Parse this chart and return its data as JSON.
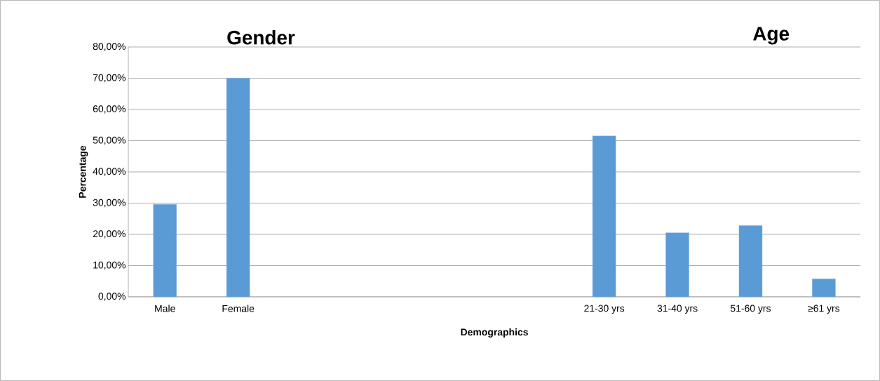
{
  "chart_data": {
    "type": "bar",
    "xlabel": "Demographics",
    "ylabel": "Percentage",
    "annotations": [
      "Gender",
      "Age"
    ],
    "categories": [
      "Male",
      "Female",
      null,
      null,
      null,
      null,
      "21-30 yrs",
      "31-40 yrs",
      "51-60 yrs",
      "≥61 yrs"
    ],
    "values": [
      29.6,
      70,
      null,
      null,
      null,
      null,
      51.5,
      20.5,
      22.8,
      5.7
    ],
    "color": "#5b9bd5",
    "ylim": [
      0,
      80
    ],
    "yticks": [
      {
        "value": 0,
        "label": "0,00%"
      },
      {
        "value": 10,
        "label": "10,00%"
      },
      {
        "value": 20,
        "label": "20,00%"
      },
      {
        "value": 30,
        "label": "30,00%"
      },
      {
        "value": 40,
        "label": "40,00%"
      },
      {
        "value": 50,
        "label": "50,00%"
      },
      {
        "value": 60,
        "label": "60,00%"
      },
      {
        "value": 70,
        "label": "70,00%"
      },
      {
        "value": 80,
        "label": "80,00%"
      }
    ],
    "grid": "y"
  }
}
